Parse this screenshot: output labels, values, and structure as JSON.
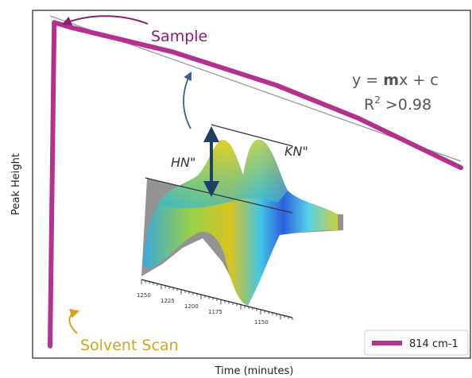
{
  "chart_data": {
    "type": "line",
    "xlabel": "Time (minutes)",
    "ylabel": "Peak Height",
    "series": [
      {
        "name": "814 cm-1",
        "color": "#b5318f",
        "points": [
          {
            "x": 0.0,
            "y": 0.01
          },
          {
            "x": 0.01,
            "y": 0.99
          },
          {
            "x": 0.05,
            "y": 0.975
          },
          {
            "x": 0.3,
            "y": 0.9
          },
          {
            "x": 0.55,
            "y": 0.8
          },
          {
            "x": 0.75,
            "y": 0.7
          },
          {
            "x": 1.0,
            "y": 0.55
          }
        ]
      }
    ],
    "fit_line": {
      "color": "#999999",
      "x0": 0.0,
      "y0": 1.0,
      "x1": 1.0,
      "y1": 0.56
    },
    "legend": {
      "position": "bottom-right"
    },
    "grid": false
  },
  "annotations": {
    "sample_label": "Sample",
    "solvent_label": "Solvent Scan",
    "equation": {
      "prefix": "y = ",
      "bold_m": "m",
      "suffix": "x + c"
    },
    "r2": {
      "base": "R",
      "sup": "2",
      "rest": " >0.98"
    },
    "sample_color": "#8a1f6e",
    "solvent_color": "#d4a318",
    "inset_arrow_color": "#3b5e8c",
    "inset": {
      "label_left": "HN\"",
      "label_right": "KN\"",
      "tick_labels": [
        "1250",
        "1225",
        "1200",
        "1175",
        "1150"
      ]
    }
  }
}
